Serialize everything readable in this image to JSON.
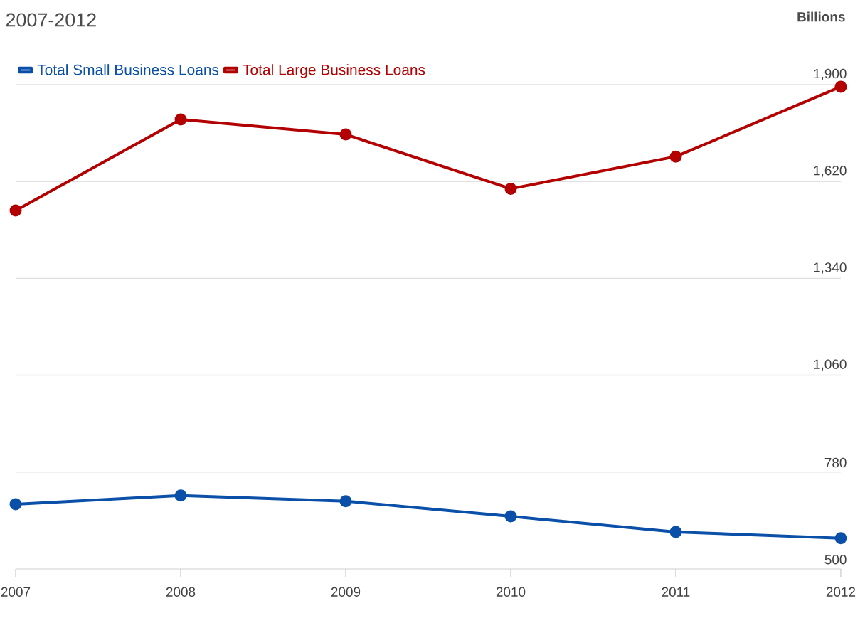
{
  "chart_data": {
    "type": "line",
    "title": "2007-2012",
    "ylabel": "Billions",
    "x": [
      2007,
      2008,
      2009,
      2010,
      2011,
      2012
    ],
    "xlim": [
      2007,
      2012
    ],
    "xticks": [
      2007,
      2008,
      2009,
      2010,
      2011,
      2012
    ],
    "ylim": [
      500,
      1900
    ],
    "yticks": [
      500,
      780,
      {
        "value": 1060,
        "label": "1,060"
      },
      {
        "value": 1340,
        "label": "1,340"
      },
      {
        "value": 1620,
        "label": "1,620"
      },
      {
        "value": 1900,
        "label": "1,900"
      }
    ],
    "series": [
      {
        "name": "Total Small Business Loans",
        "color": "#0a4fa8",
        "values": [
          687,
          712,
          696,
          652,
          607,
          589
        ]
      },
      {
        "name": "Total Large Business Loans",
        "color": "#b30000",
        "values": [
          1536,
          1799,
          1756,
          1599,
          1692,
          1894
        ]
      }
    ],
    "grid": "y",
    "legend": "top left",
    "marker": "circle",
    "line_style": "solid"
  }
}
